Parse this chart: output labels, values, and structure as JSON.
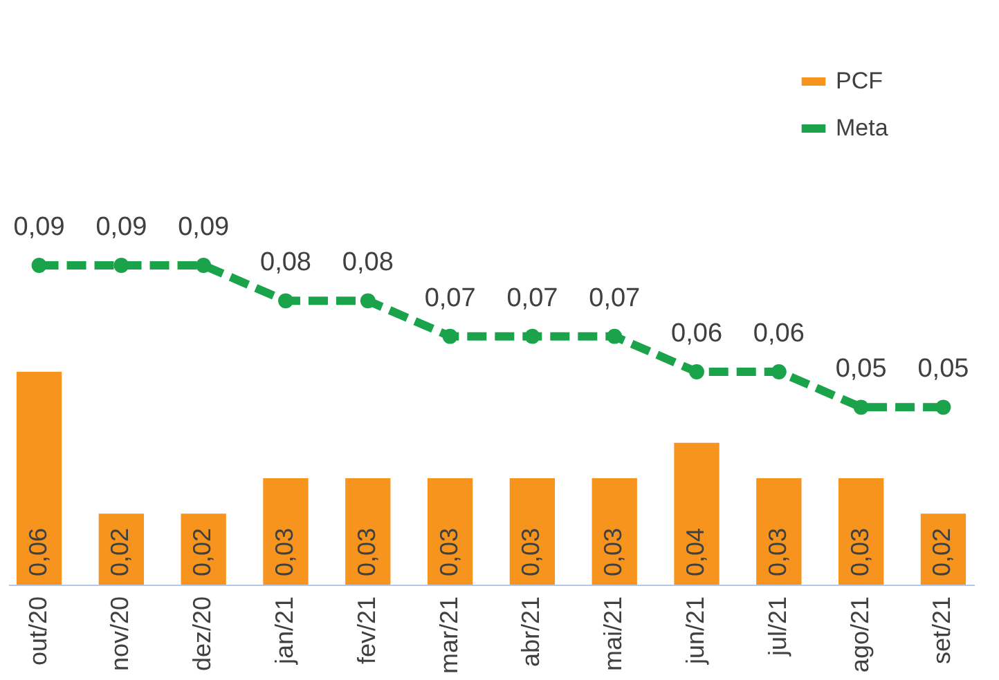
{
  "chart_data": {
    "type": "bar",
    "categories": [
      "out/20",
      "nov/20",
      "dez/20",
      "jan/21",
      "fev/21",
      "mar/21",
      "abr/21",
      "mai/21",
      "jun/21",
      "jul/21",
      "ago/21",
      "set/21"
    ],
    "series": [
      {
        "name": "PCF",
        "color": "#f7941d",
        "values": [
          0.06,
          0.02,
          0.02,
          0.03,
          0.03,
          0.03,
          0.03,
          0.03,
          0.04,
          0.03,
          0.03,
          0.02
        ],
        "value_labels": [
          "0,06",
          "0,02",
          "0,02",
          "0,03",
          "0,03",
          "0,03",
          "0,03",
          "0,03",
          "0,04",
          "0,03",
          "0,03",
          "0,02"
        ]
      },
      {
        "name": "Meta",
        "type": "line",
        "color": "#1aa34a",
        "marker": "circle",
        "line_style": "dashed",
        "values": [
          0.09,
          0.09,
          0.09,
          0.08,
          0.08,
          0.07,
          0.07,
          0.07,
          0.06,
          0.06,
          0.05,
          0.05
        ],
        "value_labels": [
          "0,09",
          "0,09",
          "0,09",
          "0,08",
          "0,08",
          "0,07",
          "0,07",
          "0,07",
          "0,06",
          "0,06",
          "0,05",
          "0,05"
        ]
      }
    ],
    "legend": "top right",
    "grid": false
  }
}
